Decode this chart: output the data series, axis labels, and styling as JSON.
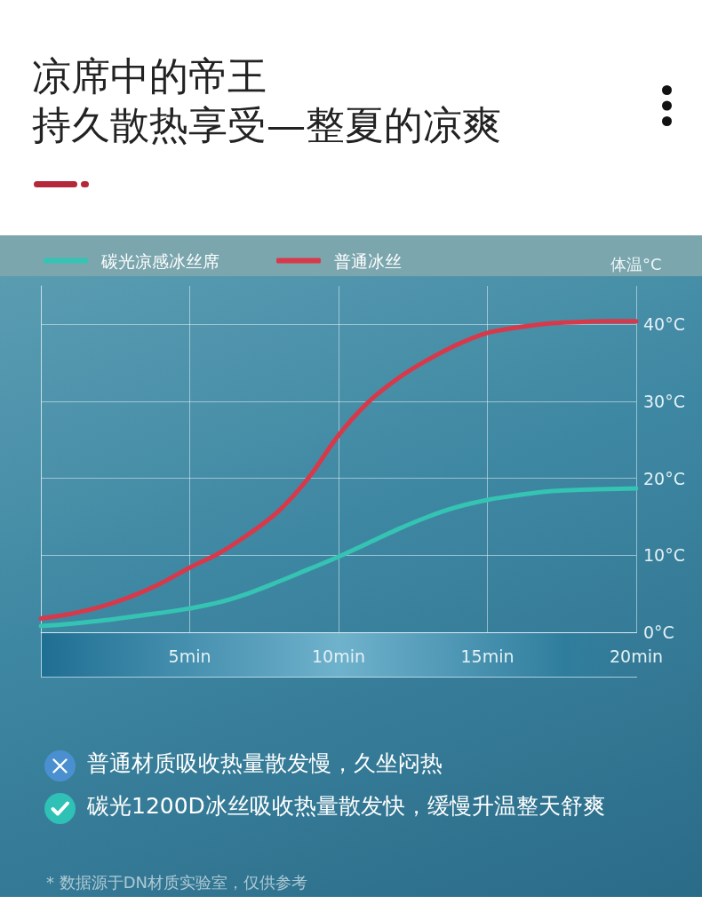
{
  "chart_data": {
    "type": "line",
    "title": "凉席中的帝王",
    "subtitle": "持久散热享受—整夏的凉爽",
    "ylabel": "体温°C",
    "x": [
      0,
      1,
      2,
      3,
      4,
      5,
      6,
      7,
      8,
      9,
      10,
      11,
      12,
      13,
      14,
      15,
      16,
      17,
      18,
      19,
      20
    ],
    "series": [
      {
        "name": "碳光凉感冰丝席",
        "color": "#35c3b3",
        "values": [
          0.8,
          1.1,
          1.5,
          2.0,
          2.5,
          3.1,
          3.9,
          5.1,
          6.6,
          8.2,
          9.8,
          11.6,
          13.4,
          15.0,
          16.3,
          17.2,
          17.8,
          18.3,
          18.5,
          18.6,
          18.7
        ]
      },
      {
        "name": "普通冰丝",
        "color": "#d8394a",
        "values": [
          1.8,
          2.4,
          3.3,
          4.6,
          6.3,
          8.4,
          10.3,
          12.8,
          15.8,
          20.1,
          25.6,
          29.9,
          33.0,
          35.4,
          37.4,
          38.9,
          39.6,
          40.1,
          40.3,
          40.4,
          40.4
        ]
      }
    ],
    "xlim": [
      0,
      20
    ],
    "xticks": [
      {
        "value": 0,
        "label": null
      },
      {
        "value": 5,
        "label": "5min"
      },
      {
        "value": 10,
        "label": "10min"
      },
      {
        "value": 15,
        "label": "15min"
      },
      {
        "value": 20,
        "label": "20min"
      }
    ],
    "ylim": [
      0,
      45
    ],
    "yticks": [
      {
        "value": 0,
        "label": "0°C"
      },
      {
        "value": 10,
        "label": "10°C"
      },
      {
        "value": 20,
        "label": "20°C"
      },
      {
        "value": 30,
        "label": "30°C"
      },
      {
        "value": 40,
        "label": "40°C"
      }
    ],
    "grid": true,
    "legend": "top left",
    "line_style": "solid",
    "annotations": [
      "普通材质吸收热量散发慢，久坐闷热",
      "碳光1200D冰丝吸收热量散发快，缓慢升温整天舒爽",
      "* 数据源于DN材质实验室，仅供参考"
    ]
  }
}
